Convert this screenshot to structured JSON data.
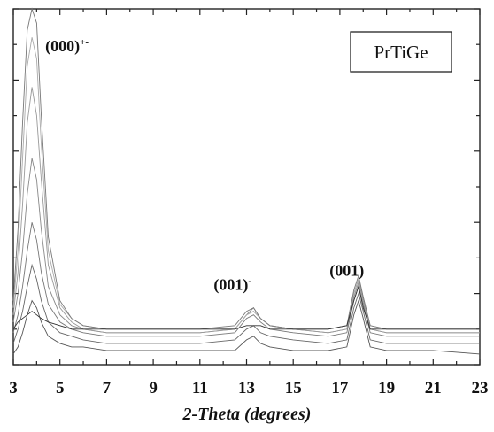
{
  "chart_data": {
    "type": "line",
    "title": "",
    "xlabel": "2-Theta (degrees)",
    "ylabel": "",
    "xlim": [
      3,
      23
    ],
    "ylim": [
      0,
      100
    ],
    "x_ticks": [
      "3",
      "5",
      "7",
      "9",
      "11",
      "13",
      "15",
      "17",
      "19",
      "21",
      "23"
    ],
    "x_tick_values": [
      3,
      5,
      7,
      9,
      11,
      13,
      15,
      17,
      19,
      21,
      23
    ],
    "legend": {
      "label": "PrTiGe",
      "placement": "top-right"
    },
    "annotations": [
      {
        "text": "(000)",
        "superscript": "+-",
        "x": 5.3,
        "y": 88
      },
      {
        "text": "(001)",
        "superscript": "-",
        "x": 12.4,
        "y": 21
      },
      {
        "text": "(001)",
        "superscript": "",
        "x": 17.3,
        "y": 25
      }
    ],
    "grid": false,
    "x": [
      3,
      3.2,
      3.4,
      3.6,
      3.8,
      4.0,
      4.2,
      4.5,
      5.0,
      5.5,
      6.0,
      7.0,
      9.0,
      11.0,
      12.5,
      13.0,
      13.3,
      13.6,
      14.0,
      15.0,
      16.5,
      17.3,
      17.6,
      17.8,
      18.0,
      18.3,
      19.0,
      21.0,
      23.0
    ],
    "series": [
      {
        "values": [
          3,
          5,
          9,
          14,
          18,
          16,
          12,
          8,
          6,
          5,
          5,
          4,
          4,
          4,
          4,
          7,
          8,
          6,
          5,
          4,
          4,
          5,
          14,
          18,
          13,
          5,
          4,
          4,
          3
        ]
      },
      {
        "values": [
          6,
          10,
          15,
          22,
          28,
          24,
          18,
          12,
          9,
          8,
          7,
          6,
          6,
          6,
          7,
          10,
          11,
          9,
          8,
          7,
          6,
          7,
          16,
          20,
          15,
          7,
          6,
          6,
          6
        ]
      },
      {
        "values": [
          9,
          14,
          22,
          32,
          40,
          35,
          26,
          17,
          12,
          10,
          9,
          8,
          8,
          8,
          9,
          13,
          14,
          12,
          10,
          9,
          8,
          9,
          18,
          22,
          17,
          9,
          8,
          8,
          8
        ]
      },
      {
        "values": [
          12,
          20,
          32,
          48,
          58,
          52,
          38,
          22,
          14,
          11,
          10,
          9,
          9,
          9,
          10,
          14,
          16,
          13,
          11,
          10,
          9,
          10,
          19,
          23,
          18,
          10,
          9,
          9,
          9
        ]
      },
      {
        "values": [
          14,
          26,
          45,
          68,
          78,
          70,
          52,
          28,
          16,
          12,
          10,
          9,
          9,
          9,
          10,
          14,
          15,
          13,
          11,
          10,
          9,
          10,
          20,
          24,
          18,
          10,
          9,
          9,
          9
        ]
      },
      {
        "values": [
          16,
          32,
          58,
          84,
          92,
          86,
          62,
          32,
          17,
          13,
          11,
          10,
          10,
          10,
          10,
          14,
          15,
          13,
          11,
          10,
          10,
          11,
          20,
          24,
          19,
          11,
          10,
          10,
          10
        ]
      },
      {
        "values": [
          18,
          38,
          68,
          94,
          100,
          96,
          70,
          36,
          18,
          13,
          11,
          10,
          10,
          10,
          11,
          15,
          16,
          13,
          11,
          10,
          10,
          11,
          21,
          25,
          19,
          11,
          10,
          10,
          10
        ]
      },
      {
        "values": [
          10,
          12,
          13,
          14,
          15,
          14,
          13,
          12,
          11,
          10,
          10,
          10,
          10,
          10,
          10,
          11,
          11,
          11,
          10,
          10,
          10,
          11,
          18,
          22,
          16,
          10,
          10,
          10,
          10
        ]
      }
    ]
  }
}
